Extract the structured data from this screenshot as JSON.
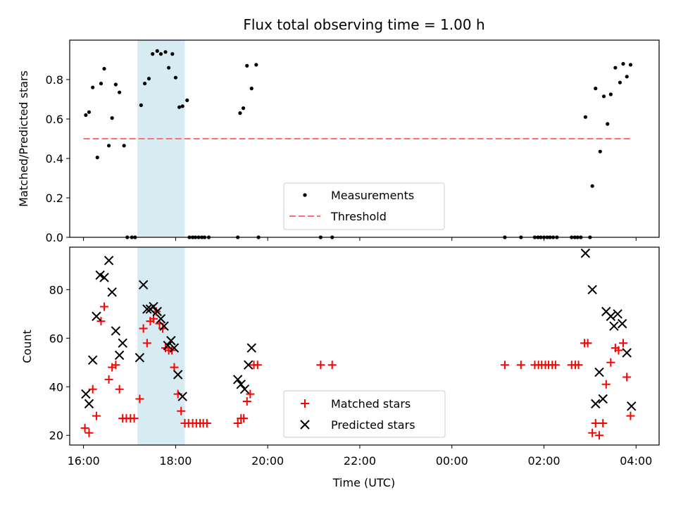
{
  "chart_data": [
    {
      "type": "scatter",
      "title": "Flux total observing time = 1.00 h",
      "xlabel": "",
      "ylabel": "Matched/Predicted stars",
      "xlim": [
        15.7,
        28.5
      ],
      "ylim": [
        0.0,
        1.0
      ],
      "y_ticks": [
        "0.0",
        "0.2",
        "0.4",
        "0.6",
        "0.8"
      ],
      "highlight_span": [
        17.17,
        18.2
      ],
      "series": [
        {
          "name": "Measurements",
          "points": [
            [
              16.05,
              0.62
            ],
            [
              16.12,
              0.635
            ],
            [
              16.2,
              0.76
            ],
            [
              16.3,
              0.405
            ],
            [
              16.38,
              0.78
            ],
            [
              16.45,
              0.855
            ],
            [
              16.55,
              0.465
            ],
            [
              16.62,
              0.605
            ],
            [
              16.7,
              0.775
            ],
            [
              16.78,
              0.735
            ],
            [
              16.88,
              0.465
            ],
            [
              16.95,
              0.0
            ],
            [
              17.05,
              0.0
            ],
            [
              17.12,
              0.0
            ],
            [
              17.25,
              0.67
            ],
            [
              17.33,
              0.78
            ],
            [
              17.42,
              0.805
            ],
            [
              17.5,
              0.93
            ],
            [
              17.6,
              0.945
            ],
            [
              17.68,
              0.93
            ],
            [
              17.78,
              0.94
            ],
            [
              17.85,
              0.86
            ],
            [
              17.93,
              0.93
            ],
            [
              18.0,
              0.81
            ],
            [
              18.08,
              0.66
            ],
            [
              18.15,
              0.665
            ],
            [
              18.25,
              0.695
            ],
            [
              18.3,
              0.0
            ],
            [
              18.37,
              0.0
            ],
            [
              18.43,
              0.0
            ],
            [
              18.5,
              0.0
            ],
            [
              18.57,
              0.0
            ],
            [
              18.63,
              0.0
            ],
            [
              18.72,
              0.0
            ],
            [
              19.35,
              0.0
            ],
            [
              19.4,
              0.63
            ],
            [
              19.47,
              0.655
            ],
            [
              19.55,
              0.87
            ],
            [
              19.65,
              0.755
            ],
            [
              19.75,
              0.875
            ],
            [
              19.8,
              0.0
            ],
            [
              21.15,
              0.0
            ],
            [
              21.4,
              0.0
            ],
            [
              25.15,
              0.0
            ],
            [
              25.5,
              0.0
            ],
            [
              25.8,
              0.0
            ],
            [
              25.87,
              0.0
            ],
            [
              25.93,
              0.0
            ],
            [
              26.0,
              0.0
            ],
            [
              26.07,
              0.0
            ],
            [
              26.13,
              0.0
            ],
            [
              26.2,
              0.0
            ],
            [
              26.28,
              0.0
            ],
            [
              26.6,
              0.0
            ],
            [
              26.67,
              0.0
            ],
            [
              26.73,
              0.0
            ],
            [
              26.8,
              0.0
            ],
            [
              26.9,
              0.61
            ],
            [
              27.0,
              0.0
            ],
            [
              27.05,
              0.26
            ],
            [
              27.12,
              0.755
            ],
            [
              27.22,
              0.435
            ],
            [
              27.3,
              0.715
            ],
            [
              27.38,
              0.575
            ],
            [
              27.45,
              0.725
            ],
            [
              27.55,
              0.86
            ],
            [
              27.65,
              0.785
            ],
            [
              27.72,
              0.88
            ],
            [
              27.8,
              0.815
            ],
            [
              27.88,
              0.875
            ]
          ]
        },
        {
          "name": "Threshold",
          "line": [
            [
              16.0,
              0.5
            ],
            [
              27.9,
              0.5
            ]
          ],
          "color": "#ff6f6f"
        }
      ],
      "legend": {
        "placement": "bottom-center",
        "entries": [
          "Measurements",
          "Threshold"
        ]
      }
    },
    {
      "type": "scatter",
      "title": "",
      "xlabel": "Time (UTC)",
      "ylabel": "Count",
      "xlim": [
        15.7,
        28.5
      ],
      "ylim": [
        16.0,
        97.5
      ],
      "y_ticks": [
        "20",
        "40",
        "60",
        "80"
      ],
      "x_ticks": [
        {
          "value": 16,
          "label": "16:00"
        },
        {
          "value": 18,
          "label": "18:00"
        },
        {
          "value": 20,
          "label": "20:00"
        },
        {
          "value": 22,
          "label": "22:00"
        },
        {
          "value": 24,
          "label": "00:00"
        },
        {
          "value": 26,
          "label": "02:00"
        },
        {
          "value": 28,
          "label": "04:00"
        }
      ],
      "highlight_span": [
        17.17,
        18.2
      ],
      "series": [
        {
          "name": "Matched stars",
          "marker": "+",
          "color": "#ff0000",
          "points": [
            [
              16.03,
              23
            ],
            [
              16.12,
              21
            ],
            [
              16.2,
              39
            ],
            [
              16.28,
              28
            ],
            [
              16.38,
              67
            ],
            [
              16.45,
              73
            ],
            [
              16.55,
              43
            ],
            [
              16.62,
              48
            ],
            [
              16.7,
              49
            ],
            [
              16.78,
              39
            ],
            [
              16.85,
              27
            ],
            [
              16.93,
              27
            ],
            [
              17.02,
              27
            ],
            [
              17.1,
              27
            ],
            [
              17.22,
              35
            ],
            [
              17.3,
              64
            ],
            [
              17.38,
              58
            ],
            [
              17.45,
              67
            ],
            [
              17.52,
              68
            ],
            [
              17.58,
              71
            ],
            [
              17.65,
              66
            ],
            [
              17.72,
              64
            ],
            [
              17.78,
              56
            ],
            [
              17.85,
              55
            ],
            [
              17.92,
              55
            ],
            [
              17.97,
              48
            ],
            [
              18.05,
              37
            ],
            [
              18.12,
              30
            ],
            [
              18.2,
              25
            ],
            [
              18.28,
              25
            ],
            [
              18.37,
              25
            ],
            [
              18.45,
              25
            ],
            [
              18.53,
              25
            ],
            [
              18.6,
              25
            ],
            [
              18.68,
              25
            ],
            [
              19.35,
              25
            ],
            [
              19.42,
              27
            ],
            [
              19.48,
              27
            ],
            [
              19.55,
              34
            ],
            [
              19.62,
              37
            ],
            [
              19.7,
              49
            ],
            [
              19.78,
              49
            ],
            [
              21.15,
              49
            ],
            [
              21.4,
              49
            ],
            [
              25.15,
              49
            ],
            [
              25.5,
              49
            ],
            [
              25.8,
              49
            ],
            [
              25.88,
              49
            ],
            [
              25.95,
              49
            ],
            [
              26.03,
              49
            ],
            [
              26.1,
              49
            ],
            [
              26.18,
              49
            ],
            [
              26.25,
              49
            ],
            [
              26.6,
              49
            ],
            [
              26.68,
              49
            ],
            [
              26.75,
              49
            ],
            [
              26.88,
              58
            ],
            [
              26.95,
              58
            ],
            [
              27.05,
              21
            ],
            [
              27.12,
              25
            ],
            [
              27.2,
              20
            ],
            [
              27.28,
              25
            ],
            [
              27.35,
              41
            ],
            [
              27.45,
              50
            ],
            [
              27.55,
              56
            ],
            [
              27.62,
              55
            ],
            [
              27.72,
              58
            ],
            [
              27.8,
              44
            ],
            [
              27.88,
              28
            ]
          ]
        },
        {
          "name": "Predicted stars",
          "marker": "x",
          "color": "#000000",
          "points": [
            [
              16.05,
              37
            ],
            [
              16.12,
              33
            ],
            [
              16.2,
              51
            ],
            [
              16.28,
              69
            ],
            [
              16.36,
              86
            ],
            [
              16.45,
              85
            ],
            [
              16.55,
              92
            ],
            [
              16.62,
              79
            ],
            [
              16.7,
              63
            ],
            [
              16.78,
              53
            ],
            [
              16.85,
              58
            ],
            [
              17.22,
              52
            ],
            [
              17.3,
              82
            ],
            [
              17.38,
              72
            ],
            [
              17.45,
              72
            ],
            [
              17.52,
              73
            ],
            [
              17.6,
              71
            ],
            [
              17.68,
              68
            ],
            [
              17.75,
              65
            ],
            [
              17.83,
              57
            ],
            [
              17.9,
              59
            ],
            [
              17.97,
              56
            ],
            [
              18.05,
              45
            ],
            [
              18.15,
              36
            ],
            [
              19.35,
              43
            ],
            [
              19.42,
              41
            ],
            [
              19.5,
              39
            ],
            [
              19.58,
              49
            ],
            [
              19.65,
              56
            ],
            [
              26.9,
              95
            ],
            [
              27.05,
              80
            ],
            [
              27.12,
              33
            ],
            [
              27.2,
              46
            ],
            [
              27.28,
              35
            ],
            [
              27.35,
              71
            ],
            [
              27.45,
              69
            ],
            [
              27.52,
              65
            ],
            [
              27.6,
              70
            ],
            [
              27.7,
              66
            ],
            [
              27.8,
              54
            ],
            [
              27.9,
              32
            ]
          ]
        }
      ],
      "legend": {
        "placement": "bottom-center",
        "entries": [
          "Matched stars",
          "Predicted stars"
        ]
      }
    }
  ]
}
